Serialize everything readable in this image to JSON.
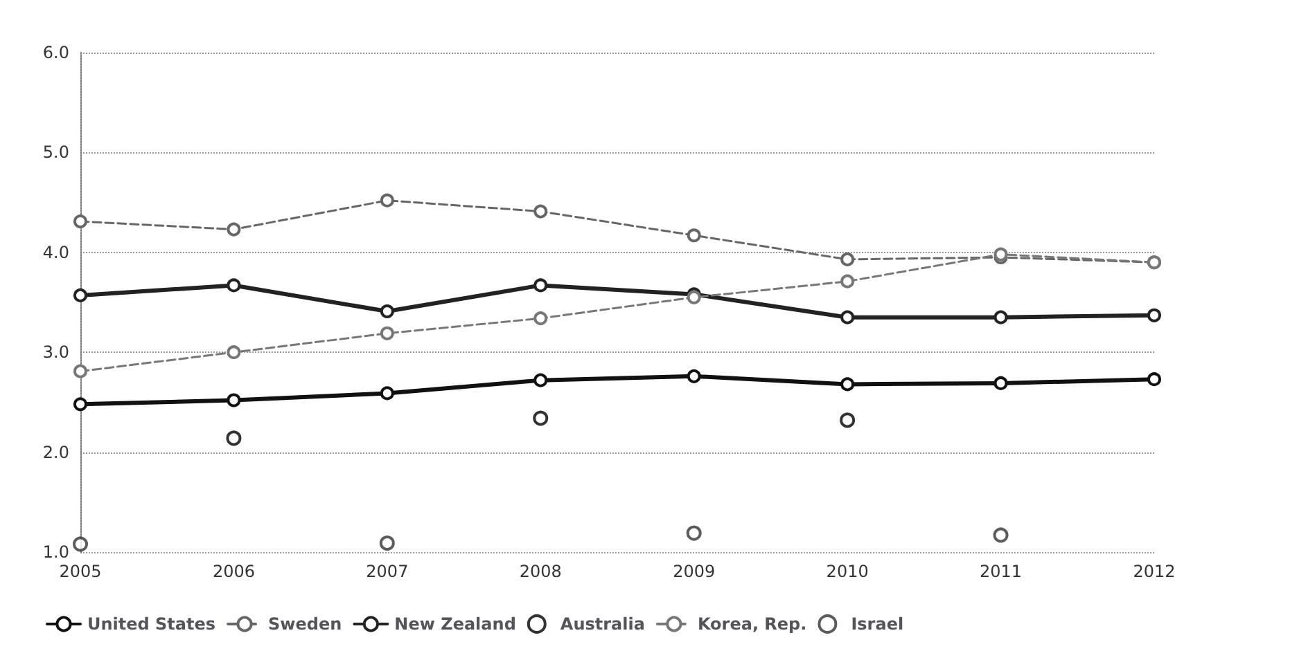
{
  "chart_data": {
    "type": "line",
    "categories": [
      "2005",
      "2006",
      "2007",
      "2008",
      "2009",
      "2010",
      "2011",
      "2012"
    ],
    "series": [
      {
        "name": "United States",
        "color": "#111111",
        "values": [
          2.48,
          2.52,
          2.59,
          2.72,
          2.76,
          2.68,
          2.69,
          2.73
        ]
      },
      {
        "name": "Sweden",
        "color": "#666666",
        "line_style": "dashed",
        "values": [
          4.31,
          4.23,
          4.52,
          4.41,
          4.17,
          3.93,
          3.95,
          3.9
        ]
      },
      {
        "name": "New Zealand",
        "color": "#222222",
        "values": [
          3.57,
          3.67,
          3.41,
          3.67,
          3.58,
          3.35,
          3.35,
          3.37
        ]
      },
      {
        "name": "Australia",
        "type": "scatter",
        "color": "#000000",
        "values": [
          null,
          2.14,
          null,
          2.34,
          null,
          2.32,
          null,
          null
        ]
      },
      {
        "name": "Korea, Rep.",
        "color": "#777777",
        "line_style": "dashed",
        "values": [
          2.81,
          3.0,
          3.19,
          3.34,
          3.55,
          3.71,
          3.98,
          3.9
        ]
      },
      {
        "name": "Israel",
        "type": "scatter",
        "color": "#333333",
        "values": [
          1.08,
          null,
          1.09,
          null,
          1.19,
          null,
          1.17,
          null
        ]
      }
    ],
    "ylim": [
      1,
      6
    ],
    "yticks": [
      {
        "value": 1,
        "label": "1.0"
      },
      {
        "value": 2,
        "label": "2.0"
      },
      {
        "value": 3,
        "label": "3.0"
      },
      {
        "value": 4,
        "label": "4.0"
      },
      {
        "value": 5,
        "label": "5.0"
      },
      {
        "value": 6,
        "label": "6.0"
      }
    ],
    "grid": "y",
    "legend": "bottom",
    "marker": "circle",
    "line_style": "solid"
  }
}
